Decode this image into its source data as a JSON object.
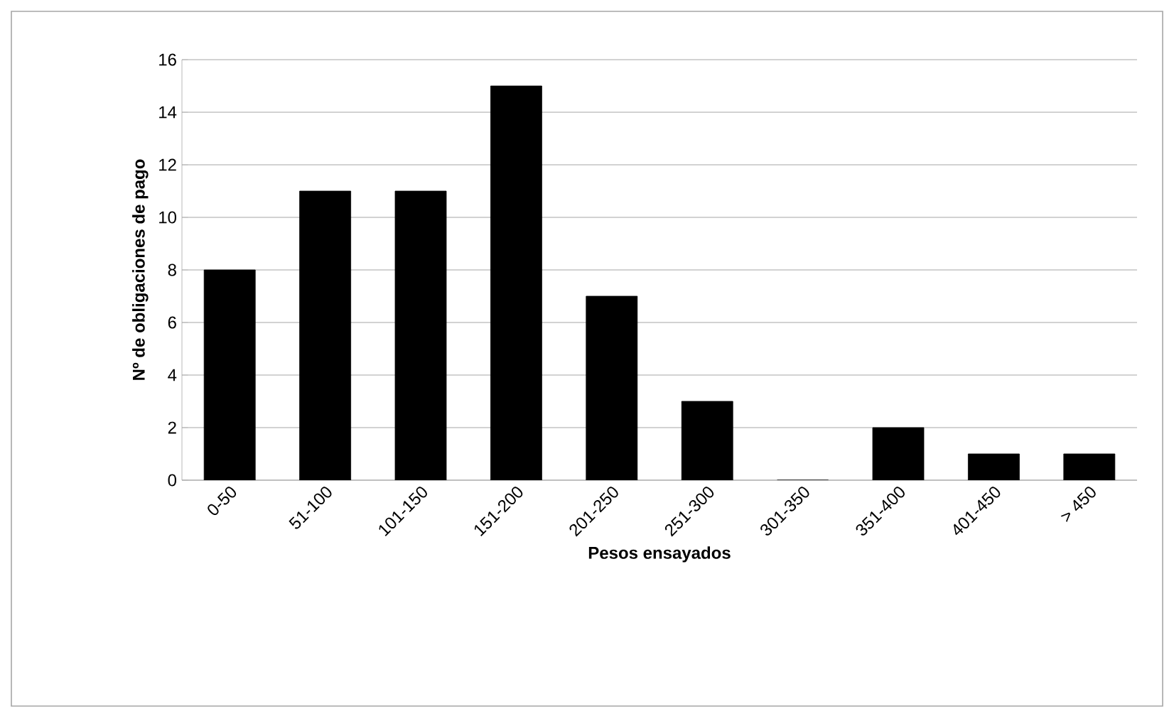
{
  "chart_data": {
    "type": "bar",
    "xlabel": "Pesos ensayados",
    "ylabel": "Nº de obligaciones de pago",
    "categories": [
      "0-50",
      "51-100",
      "101-150",
      "151-200",
      "201-250",
      "251-300",
      "301-350",
      "351-400",
      "401-450",
      "> 450"
    ],
    "values": [
      8,
      11,
      11,
      15,
      7,
      3,
      0,
      2,
      1,
      1
    ],
    "color": "#000000",
    "ylim": [
      0,
      16
    ],
    "yticks": [
      0,
      2,
      4,
      6,
      8,
      10,
      12,
      14,
      16
    ],
    "grid": "y"
  }
}
